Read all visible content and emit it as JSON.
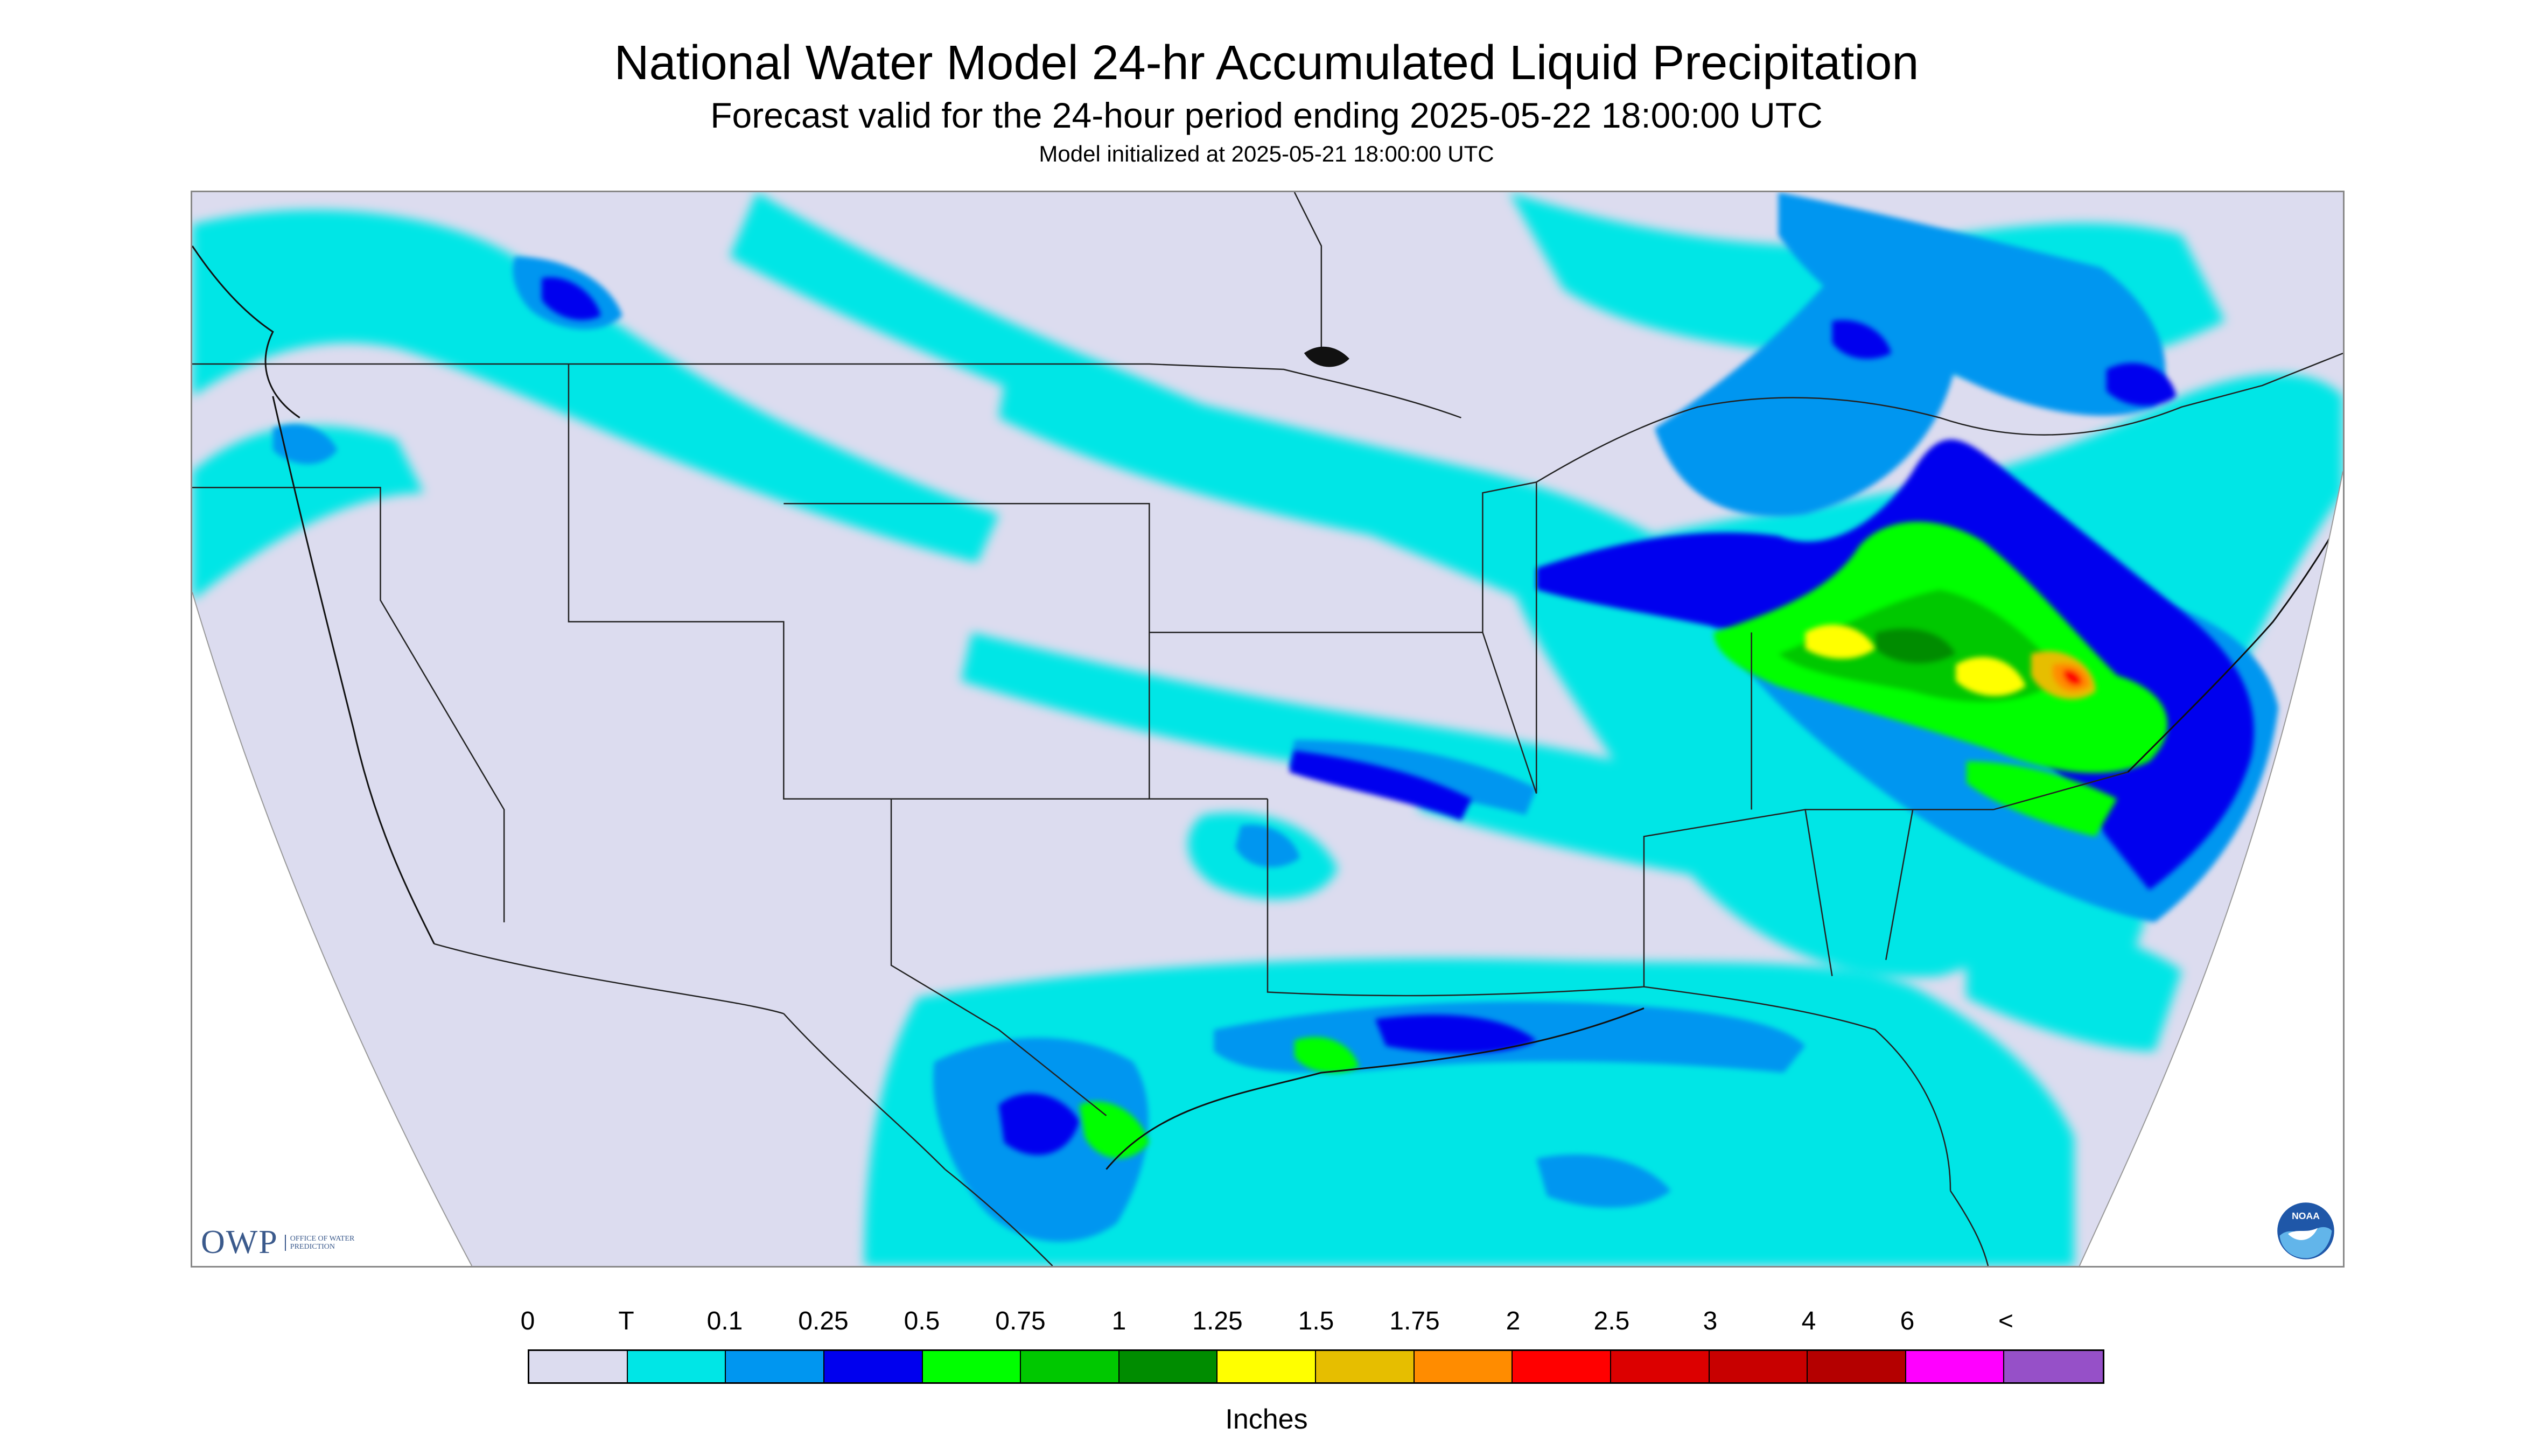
{
  "header": {
    "title": "National Water Model 24-hr Accumulated Liquid Precipitation",
    "subtitle": "Forecast valid for the 24-hour period ending 2025-05-22 18:00:00 UTC",
    "init_line": "Model initialized at 2025-05-21 18:00:00 UTC"
  },
  "map": {
    "region": "CONUS",
    "logos": {
      "owp_mark": "OWP",
      "owp_sub": "OFFICE OF WATER PREDICTION",
      "noaa": "NOAA"
    },
    "colors": {
      "background": "#dcdcef",
      "outline": "#222222"
    }
  },
  "legend": {
    "labels": [
      "0",
      "T",
      "0.1",
      "0.25",
      "0.5",
      "0.75",
      "1",
      "1.25",
      "1.5",
      "1.75",
      "2",
      "2.5",
      "3",
      "4",
      "6",
      "<"
    ],
    "colors": [
      "#dcdcef",
      "#00e6e6",
      "#0096f0",
      "#0000ee",
      "#00ff00",
      "#00c800",
      "#008c00",
      "#ffff00",
      "#e6be00",
      "#ff8c00",
      "#ff0000",
      "#dc0000",
      "#c80000",
      "#b40000",
      "#ff00ff",
      "#9650c8"
    ],
    "units": "Inches"
  }
}
